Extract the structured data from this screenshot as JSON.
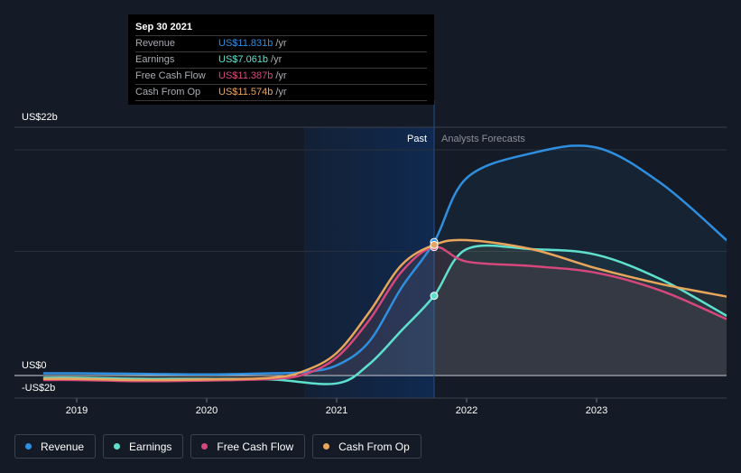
{
  "tooltip": {
    "date": "Sep 30 2021",
    "rows": [
      {
        "label": "Revenue",
        "value": "US$11.831b",
        "unit": "/yr",
        "color": "#2e8fe0"
      },
      {
        "label": "Earnings",
        "value": "US$7.061b",
        "unit": "/yr",
        "color": "#5fe0cf"
      },
      {
        "label": "Free Cash Flow",
        "value": "US$11.387b",
        "unit": "/yr",
        "color": "#d6477c"
      },
      {
        "label": "Cash From Op",
        "value": "US$11.574b",
        "unit": "/yr",
        "color": "#e8a55c"
      }
    ]
  },
  "legend": [
    {
      "label": "Revenue",
      "color": "#2e8fe0"
    },
    {
      "label": "Earnings",
      "color": "#5fe0cf"
    },
    {
      "label": "Free Cash Flow",
      "color": "#d6477c"
    },
    {
      "label": "Cash From Op",
      "color": "#e8a55c"
    }
  ],
  "chart_data": {
    "type": "line",
    "y_top_label": "US$22b",
    "y_zero_label": "US$0",
    "y_bottom_label": "-US$2b",
    "ylim": [
      -2,
      22
    ],
    "xlim": [
      2018.75,
      2024.0
    ],
    "x_ticks": [
      2019,
      2020,
      2021,
      2022,
      2023
    ],
    "x_tick_labels": [
      "2019",
      "2020",
      "2021",
      "2022",
      "2023"
    ],
    "past_label": "Past",
    "forecast_label": "Analysts Forecasts",
    "past_end_x": 2021.75,
    "highlight_start_x": 2020.75,
    "series": [
      {
        "name": "Revenue",
        "color": "#2e8fe0",
        "points": [
          [
            2018.75,
            0.2
          ],
          [
            2019.0,
            0.2
          ],
          [
            2019.5,
            0.15
          ],
          [
            2020.0,
            0.1
          ],
          [
            2020.5,
            0.2
          ],
          [
            2020.75,
            0.3
          ],
          [
            2021.0,
            0.9
          ],
          [
            2021.25,
            3.0
          ],
          [
            2021.5,
            7.8
          ],
          [
            2021.75,
            11.831
          ],
          [
            2022.0,
            17.5
          ],
          [
            2022.5,
            19.7
          ],
          [
            2023.0,
            20.2
          ],
          [
            2023.5,
            17.0
          ],
          [
            2024.0,
            12.0
          ]
        ]
      },
      {
        "name": "Earnings",
        "color": "#5fe0cf",
        "points": [
          [
            2018.75,
            -0.2
          ],
          [
            2019.0,
            -0.2
          ],
          [
            2019.5,
            -0.3
          ],
          [
            2020.0,
            -0.3
          ],
          [
            2020.5,
            -0.35
          ],
          [
            2021.0,
            -0.7
          ],
          [
            2021.25,
            1.0
          ],
          [
            2021.5,
            4.0
          ],
          [
            2021.75,
            7.061
          ],
          [
            2022.0,
            11.2
          ],
          [
            2022.5,
            11.2
          ],
          [
            2023.0,
            10.7
          ],
          [
            2023.5,
            8.5
          ],
          [
            2024.0,
            5.3
          ]
        ]
      },
      {
        "name": "Free Cash Flow",
        "color": "#d6477c",
        "points": [
          [
            2018.75,
            -0.4
          ],
          [
            2019.0,
            -0.4
          ],
          [
            2019.5,
            -0.5
          ],
          [
            2020.0,
            -0.45
          ],
          [
            2020.5,
            -0.3
          ],
          [
            2020.75,
            0.1
          ],
          [
            2021.0,
            1.6
          ],
          [
            2021.25,
            4.9
          ],
          [
            2021.5,
            9.2
          ],
          [
            2021.75,
            11.387
          ],
          [
            2022.0,
            10.1
          ],
          [
            2022.5,
            9.7
          ],
          [
            2023.0,
            9.1
          ],
          [
            2023.5,
            7.5
          ],
          [
            2024.0,
            5.0
          ]
        ]
      },
      {
        "name": "Cash From Op",
        "color": "#e8a55c",
        "points": [
          [
            2018.75,
            -0.3
          ],
          [
            2019.0,
            -0.3
          ],
          [
            2019.5,
            -0.4
          ],
          [
            2020.0,
            -0.35
          ],
          [
            2020.5,
            -0.2
          ],
          [
            2020.75,
            0.4
          ],
          [
            2021.0,
            2.0
          ],
          [
            2021.25,
            5.6
          ],
          [
            2021.5,
            9.8
          ],
          [
            2021.75,
            11.574
          ],
          [
            2022.0,
            12.0
          ],
          [
            2022.5,
            11.2
          ],
          [
            2023.0,
            9.5
          ],
          [
            2023.5,
            8.1
          ],
          [
            2024.0,
            7.0
          ]
        ]
      }
    ]
  }
}
